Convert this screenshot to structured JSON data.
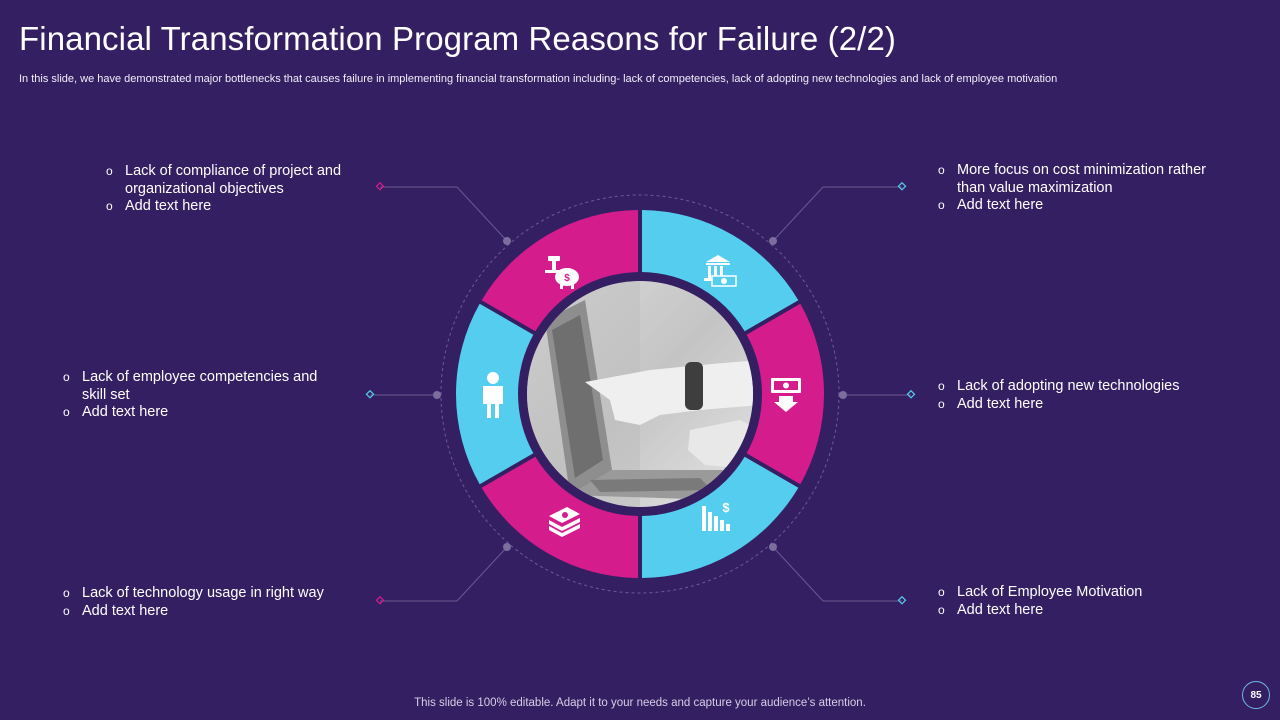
{
  "slide": {
    "title": "Financial Transformation Program Reasons for Failure (2/2)",
    "subtitle": "In this slide, we have demonstrated major bottlenecks that causes failure in implementing financial transformation including- lack of competencies, lack of adopting new technologies and lack of employee motivation",
    "footer": "This slide is 100% editable. Adapt it to your needs and capture your audience’s attention.",
    "page_number": "85"
  },
  "reasons": {
    "top_left": [
      "Lack of compliance of project and organizational objectives",
      "Add text here"
    ],
    "middle_left": [
      "Lack of employee competencies and skill set",
      "Add text here"
    ],
    "bottom_left": [
      "Lack of technology usage in right way",
      "Add text here"
    ],
    "top_right": [
      "More focus on cost minimization rather than value maximization",
      "Add text here"
    ],
    "middle_right": [
      "Lack of adopting new technologies",
      "Add text here"
    ],
    "bottom_right": [
      "Lack of Employee Motivation",
      "Add text here"
    ]
  },
  "icons": [
    "gavel-piggy-bank-icon",
    "bank-money-icon",
    "money-down-icon",
    "chart-decline-dollar-icon",
    "cash-stack-icon",
    "person-icon"
  ],
  "colors": {
    "background": "#341f62",
    "magenta": "#d41c8d",
    "cyan": "#55cdee",
    "connector": "#6a5a90"
  }
}
